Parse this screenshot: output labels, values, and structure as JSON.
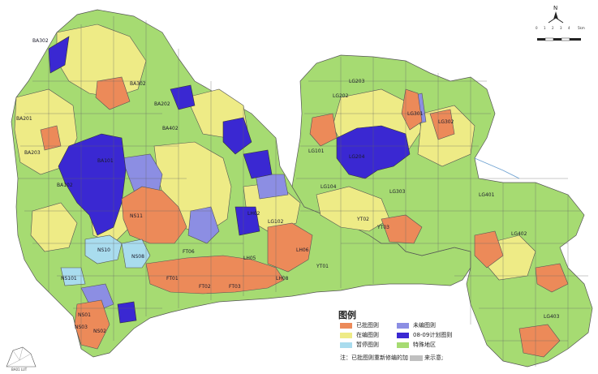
{
  "legend": {
    "title": "图例",
    "items": [
      {
        "label": "已批图则",
        "color": "#ec8a59"
      },
      {
        "label": "未编图则",
        "color": "#8c8ee3"
      },
      {
        "label": "在编图则",
        "color": "#eeeb86"
      },
      {
        "label": "08-09计划图则",
        "color": "#3a28d2"
      },
      {
        "label": "暂停图则",
        "color": "#a9dcee"
      },
      {
        "label": "特殊地区",
        "color": "#a6db72"
      }
    ],
    "note_prefix": "注：已批图则重新修编的加",
    "note_suffix": "来示意;"
  },
  "north_arrow": {
    "label": "N"
  },
  "scale": {
    "ticks": [
      "0",
      "1",
      "2",
      "3",
      "4",
      "5km"
    ]
  },
  "districts": [
    "BA302",
    "BA202",
    "BA201",
    "BA203",
    "BA101",
    "BA402",
    "BA302",
    "BA102",
    "NS11",
    "NS10",
    "NS08",
    "NS101",
    "NS01",
    "NS03",
    "NS02",
    "FT06",
    "FT01",
    "FT02",
    "FT03",
    "LH05",
    "LH08",
    "LH06",
    "LH02",
    "YT01",
    "LG202",
    "LG203",
    "LG204",
    "LG302",
    "LG301",
    "LG303",
    "LG104",
    "LG101",
    "YT02",
    "YT03",
    "LG401",
    "LG402",
    "LG403",
    "LG102"
  ],
  "corner_label": "BA01 LUT",
  "colors": {
    "approved": "#ec8a59",
    "unedited": "#8c8ee3",
    "editing": "#eeeb86",
    "planned": "#3a28d2",
    "paused": "#a9dcee",
    "special": "#a6db72"
  }
}
